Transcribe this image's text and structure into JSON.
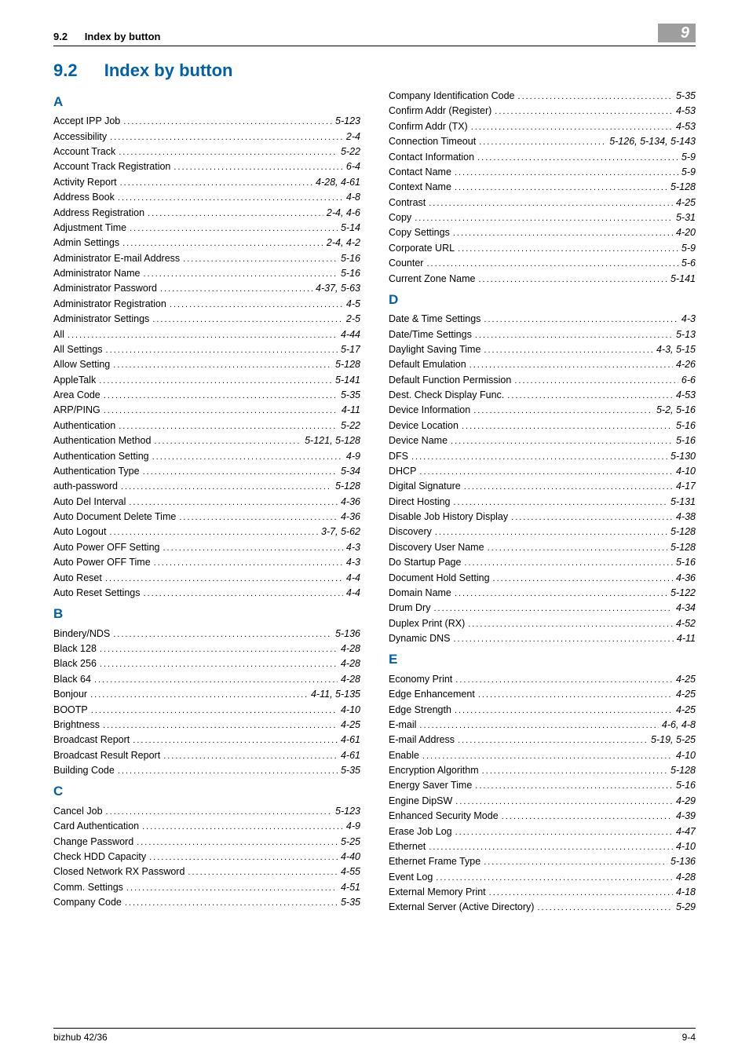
{
  "header": {
    "section_number": "9.2",
    "section_name": "Index by button",
    "chapter_badge": "9"
  },
  "heading": {
    "number": "9.2",
    "title": "Index by button"
  },
  "index": [
    {
      "letter": "A",
      "entries": [
        {
          "term": "Accept IPP Job",
          "pages": "5-123"
        },
        {
          "term": "Accessibility",
          "pages": "2-4"
        },
        {
          "term": "Account Track",
          "pages": "5-22"
        },
        {
          "term": "Account Track Registration",
          "pages": "6-4"
        },
        {
          "term": "Activity Report",
          "pages": "4-28, 4-61"
        },
        {
          "term": "Address Book",
          "pages": "4-8"
        },
        {
          "term": "Address Registration",
          "pages": "2-4, 4-6"
        },
        {
          "term": "Adjustment Time",
          "pages": "5-14"
        },
        {
          "term": "Admin Settings",
          "pages": "2-4, 4-2"
        },
        {
          "term": "Administrator E-mail Address",
          "pages": "5-16"
        },
        {
          "term": "Administrator Name",
          "pages": "5-16"
        },
        {
          "term": "Administrator Password",
          "pages": "4-37, 5-63"
        },
        {
          "term": "Administrator Registration",
          "pages": "4-5"
        },
        {
          "term": "Administrator Settings",
          "pages": "2-5"
        },
        {
          "term": "All",
          "pages": "4-44"
        },
        {
          "term": "All Settings",
          "pages": "5-17"
        },
        {
          "term": "Allow Setting",
          "pages": "5-128"
        },
        {
          "term": "AppleTalk",
          "pages": "5-141"
        },
        {
          "term": "Area Code",
          "pages": "5-35"
        },
        {
          "term": "ARP/PING",
          "pages": "4-11"
        },
        {
          "term": "Authentication",
          "pages": "5-22"
        },
        {
          "term": "Authentication Method",
          "pages": "5-121, 5-128"
        },
        {
          "term": "Authentication Setting",
          "pages": "4-9"
        },
        {
          "term": "Authentication Type",
          "pages": "5-34"
        },
        {
          "term": "auth-password",
          "pages": "5-128"
        },
        {
          "term": "Auto Del Interval",
          "pages": "4-36"
        },
        {
          "term": "Auto Document Delete Time",
          "pages": "4-36"
        },
        {
          "term": "Auto Logout",
          "pages": "3-7, 5-62"
        },
        {
          "term": "Auto Power OFF Setting",
          "pages": "4-3"
        },
        {
          "term": "Auto Power OFF Time",
          "pages": "4-3"
        },
        {
          "term": "Auto Reset",
          "pages": "4-4"
        },
        {
          "term": "Auto Reset Settings",
          "pages": "4-4"
        }
      ]
    },
    {
      "letter": "B",
      "entries": [
        {
          "term": "Bindery/NDS",
          "pages": "5-136"
        },
        {
          "term": "Black 128",
          "pages": "4-28"
        },
        {
          "term": "Black 256",
          "pages": "4-28"
        },
        {
          "term": "Black 64",
          "pages": "4-28"
        },
        {
          "term": "Bonjour",
          "pages": "4-11, 5-135"
        },
        {
          "term": "BOOTP",
          "pages": "4-10"
        },
        {
          "term": "Brightness",
          "pages": "4-25"
        },
        {
          "term": "Broadcast Report",
          "pages": "4-61"
        },
        {
          "term": "Broadcast Result Report",
          "pages": "4-61"
        },
        {
          "term": "Building Code",
          "pages": "5-35"
        }
      ]
    },
    {
      "letter": "C",
      "entries": [
        {
          "term": "Cancel Job",
          "pages": "5-123"
        },
        {
          "term": "Card Authentication",
          "pages": "4-9"
        },
        {
          "term": "Change Password",
          "pages": "5-25"
        },
        {
          "term": "Check HDD Capacity",
          "pages": "4-40"
        },
        {
          "term": "Closed Network RX Password",
          "pages": "4-55"
        },
        {
          "term": "Comm. Settings",
          "pages": "4-51"
        },
        {
          "term": "Company Code",
          "pages": "5-35"
        },
        {
          "term": "Company Identification Code",
          "pages": "5-35"
        },
        {
          "term": "Confirm Addr (Register)",
          "pages": "4-53"
        },
        {
          "term": "Confirm Addr (TX)",
          "pages": "4-53"
        },
        {
          "term": "Connection Timeout",
          "pages": " 5-126, 5-134, 5-143"
        },
        {
          "term": "Contact Information",
          "pages": "5-9"
        },
        {
          "term": "Contact Name",
          "pages": "5-9"
        },
        {
          "term": "Context Name",
          "pages": "5-128"
        },
        {
          "term": "Contrast",
          "pages": "4-25"
        },
        {
          "term": "Copy",
          "pages": "5-31"
        },
        {
          "term": "Copy Settings",
          "pages": "4-20"
        },
        {
          "term": "Corporate URL",
          "pages": "5-9"
        },
        {
          "term": "Counter",
          "pages": "5-6"
        },
        {
          "term": "Current Zone Name",
          "pages": "5-141"
        }
      ]
    },
    {
      "letter": "D",
      "entries": [
        {
          "term": "Date & Time Settings",
          "pages": "4-3"
        },
        {
          "term": "Date/Time Settings",
          "pages": "5-13"
        },
        {
          "term": "Daylight Saving Time",
          "pages": " 4-3, 5-15"
        },
        {
          "term": "Default Emulation",
          "pages": "4-26"
        },
        {
          "term": "Default Function Permission",
          "pages": "6-6"
        },
        {
          "term": "Dest. Check Display Func.",
          "pages": "4-53"
        },
        {
          "term": "Device Information",
          "pages": " 5-2, 5-16"
        },
        {
          "term": "Device Location",
          "pages": "5-16"
        },
        {
          "term": "Device Name",
          "pages": "5-16"
        },
        {
          "term": "DFS",
          "pages": "5-130"
        },
        {
          "term": "DHCP",
          "pages": "4-10"
        },
        {
          "term": "Digital Signature",
          "pages": "4-17"
        },
        {
          "term": "Direct Hosting",
          "pages": "5-131"
        },
        {
          "term": "Disable Job History Display",
          "pages": "4-38"
        },
        {
          "term": "Discovery",
          "pages": "5-128"
        },
        {
          "term": "Discovery User Name",
          "pages": "5-128"
        },
        {
          "term": "Do Startup Page",
          "pages": "5-16"
        },
        {
          "term": "Document Hold Setting",
          "pages": "4-36"
        },
        {
          "term": "Domain Name",
          "pages": "5-122"
        },
        {
          "term": "Drum Dry",
          "pages": "4-34"
        },
        {
          "term": "Duplex Print (RX)",
          "pages": "4-52"
        },
        {
          "term": "Dynamic DNS",
          "pages": "4-11"
        }
      ]
    },
    {
      "letter": "E",
      "entries": [
        {
          "term": "Economy Print",
          "pages": "4-25"
        },
        {
          "term": "Edge Enhancement",
          "pages": "4-25"
        },
        {
          "term": "Edge Strength",
          "pages": "4-25"
        },
        {
          "term": "E-mail",
          "pages": " 4-6, 4-8"
        },
        {
          "term": "E-mail Address",
          "pages": " 5-19, 5-25"
        },
        {
          "term": "Enable",
          "pages": "4-10"
        },
        {
          "term": "Encryption Algorithm",
          "pages": "5-128"
        },
        {
          "term": "Energy Saver Time",
          "pages": "5-16"
        },
        {
          "term": "Engine DipSW",
          "pages": "4-29"
        },
        {
          "term": "Enhanced Security Mode",
          "pages": "4-39"
        },
        {
          "term": "Erase Job Log",
          "pages": "4-47"
        },
        {
          "term": "Ethernet",
          "pages": "4-10"
        },
        {
          "term": "Ethernet Frame Type",
          "pages": "5-136"
        },
        {
          "term": "Event Log",
          "pages": "4-28"
        },
        {
          "term": "External Memory Print",
          "pages": "4-18"
        },
        {
          "term": "External Server (Active Directory)",
          "pages": "5-29"
        }
      ]
    }
  ],
  "footer": {
    "left": "bizhub 42/36",
    "right": "9-4"
  },
  "style": {
    "heading_color": "#0060a8",
    "letter_color": "#0060a8",
    "badge_bg": "#9e9e9e",
    "badge_fg": "#ffffff",
    "page_bg": "#ffffff",
    "text_color": "#000000"
  }
}
